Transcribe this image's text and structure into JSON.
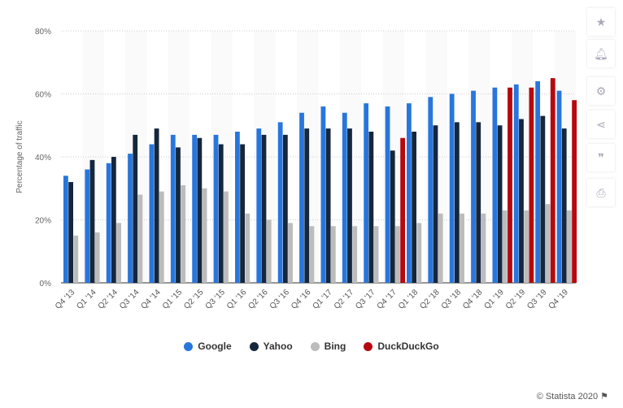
{
  "chart_data": {
    "type": "bar",
    "ylabel": "Percentage of traffic",
    "ylim": [
      0,
      80
    ],
    "yticks": [
      0,
      20,
      40,
      60,
      80
    ],
    "ytick_labels": [
      "0%",
      "20%",
      "40%",
      "60%",
      "80%"
    ],
    "grid": true,
    "legend_position": "bottom",
    "categories": [
      "Q4 '13",
      "Q1 '14",
      "Q2 '14",
      "Q3 '14",
      "Q4 '14",
      "Q1 '15",
      "Q2 '15",
      "Q3 '15",
      "Q1 '16",
      "Q2 '16",
      "Q3 '16",
      "Q4 '16",
      "Q1 '17",
      "Q2 '17",
      "Q3 '17",
      "Q4 '17",
      "Q1 '18",
      "Q2 '18",
      "Q3 '18",
      "Q4 '18",
      "Q1 '19",
      "Q2 '19",
      "Q3 '19",
      "Q4 '19"
    ],
    "series": [
      {
        "name": "Google",
        "color": "#2876dd",
        "values": [
          34,
          36,
          38,
          41,
          44,
          47,
          47,
          47,
          48,
          49,
          51,
          54,
          56,
          54,
          57,
          56,
          57,
          59,
          60,
          61,
          62,
          63,
          64,
          61
        ]
      },
      {
        "name": "Yahoo",
        "color": "#14273d",
        "values": [
          32,
          39,
          40,
          47,
          49,
          43,
          46,
          44,
          44,
          47,
          47,
          49,
          49,
          49,
          48,
          42,
          48,
          50,
          51,
          51,
          50,
          52,
          53,
          49
        ]
      },
      {
        "name": "Bing",
        "color": "#bcbcbc",
        "values": [
          15,
          16,
          19,
          28,
          29,
          31,
          30,
          29,
          22,
          20,
          19,
          18,
          18,
          18,
          18,
          18,
          19,
          22,
          22,
          22,
          23,
          23,
          25,
          23
        ]
      },
      {
        "name": "DuckDuckGo",
        "color": "#b5090f",
        "values": [
          null,
          null,
          null,
          null,
          null,
          null,
          null,
          null,
          null,
          null,
          null,
          null,
          null,
          null,
          null,
          46,
          null,
          null,
          null,
          null,
          62,
          62,
          65,
          58
        ]
      }
    ]
  },
  "sidebar_icons": [
    "star-icon",
    "bell-icon",
    "gear-icon",
    "share-icon",
    "quote-icon",
    "print-icon"
  ],
  "footer": {
    "text": "© Statista 2020",
    "icon": "flag-icon"
  }
}
